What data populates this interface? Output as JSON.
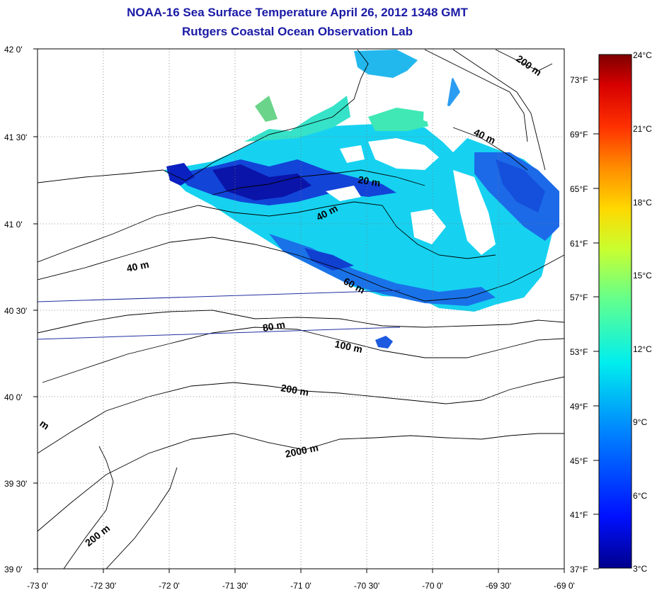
{
  "header": {
    "title": "NOAA-16 Sea Surface Temperature April 26, 2012 1348 GMT",
    "subtitle": "Rutgers Coastal Ocean Observation Lab"
  },
  "axes": {
    "y_ticks": [
      "42 0'",
      "41 30'",
      "41 0'",
      "40 30'",
      "40 0'",
      "39 30'",
      "39 0'"
    ],
    "x_ticks": [
      "-73 0'",
      "-72 30'",
      "-72 0'",
      "-71 30'",
      "-71 0'",
      "-70 30'",
      "-70 0'",
      "-69 30'",
      "-69 0'"
    ]
  },
  "depth_labels": [
    "200 m",
    "40 m",
    "20 m",
    "40 m",
    "40 m",
    "60 m",
    "80 m",
    "100 m",
    "200 m",
    "2000 m",
    "200 m",
    "m"
  ],
  "colorbar": {
    "celsius_labels": [
      "24°C",
      "21°C",
      "18°C",
      "15°C",
      "12°C",
      "9°C",
      "6°C",
      "3°C"
    ],
    "fahrenheit_labels": [
      "73°F",
      "69°F",
      "65°F",
      "61°F",
      "57°F",
      "53°F",
      "49°F",
      "45°F",
      "41°F",
      "37°F"
    ],
    "colors": [
      "#7f0000",
      "#d70000",
      "#ff3000",
      "#ff8c00",
      "#ffd800",
      "#c8ff30",
      "#60ff90",
      "#00eeee",
      "#0080ff",
      "#0010ff",
      "#00008c"
    ]
  }
}
